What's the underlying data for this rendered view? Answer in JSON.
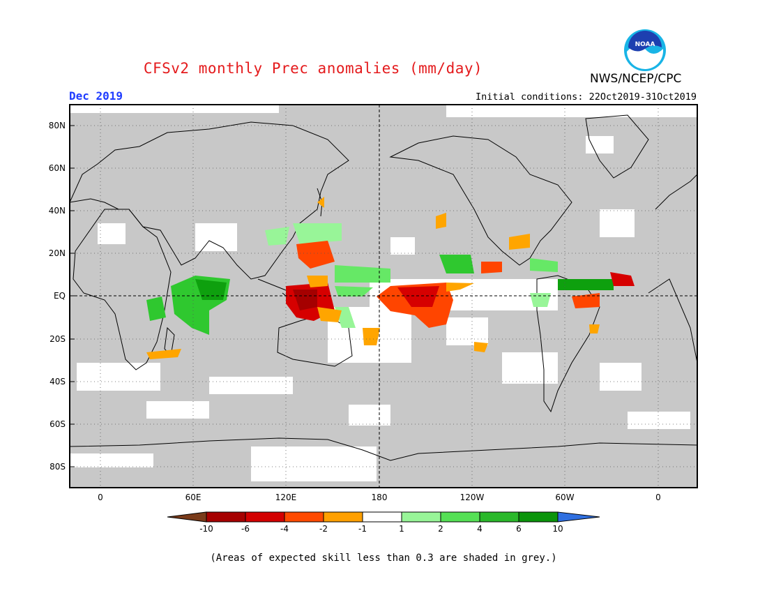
{
  "header": {
    "title": "CFSv2 monthly Prec anomalies (mm/day)",
    "month": "Dec 2019",
    "initial_conditions": "Initial conditions: 22Oct2019-31Oct2019",
    "agency": "NWS/NCEP/CPC",
    "logo_text": "NOAA"
  },
  "map": {
    "lat_labels": [
      "80N",
      "60N",
      "40N",
      "20N",
      "EQ",
      "20S",
      "40S",
      "60S",
      "80S"
    ],
    "lon_labels": [
      "0",
      "60E",
      "120E",
      "180",
      "120W",
      "60W",
      "0"
    ],
    "colors": {
      "grey_low_skill": "#c8c8c8",
      "ocean_land_no_signal": "#ffffff",
      "neg_10": "#7a2e0e",
      "neg_6": "#a50000",
      "neg_4": "#d60000",
      "neg_2": "#ff4500",
      "neg_1": "#ffa500",
      "pos_1": "#98f598",
      "pos_2": "#66e866",
      "pos_4": "#2fc82f",
      "pos_6": "#0ea00e",
      "pos_10": "#3c78d8"
    }
  },
  "legend": {
    "labels": [
      "-10",
      "-6",
      "-4",
      "-2",
      "-1",
      "1",
      "2",
      "4",
      "6",
      "10"
    ],
    "colors": [
      "#a60000",
      "#d30000",
      "#ff4a00",
      "#ffa000",
      "#ffffff",
      "#98f598",
      "#55e055",
      "#2ab82a",
      "#0b940b"
    ],
    "arrow_left_color": "#7a3b1a",
    "arrow_right_color": "#2f6fe0"
  },
  "footnote": "(Areas of expected skill less than 0.3 are shaded in grey.)"
}
